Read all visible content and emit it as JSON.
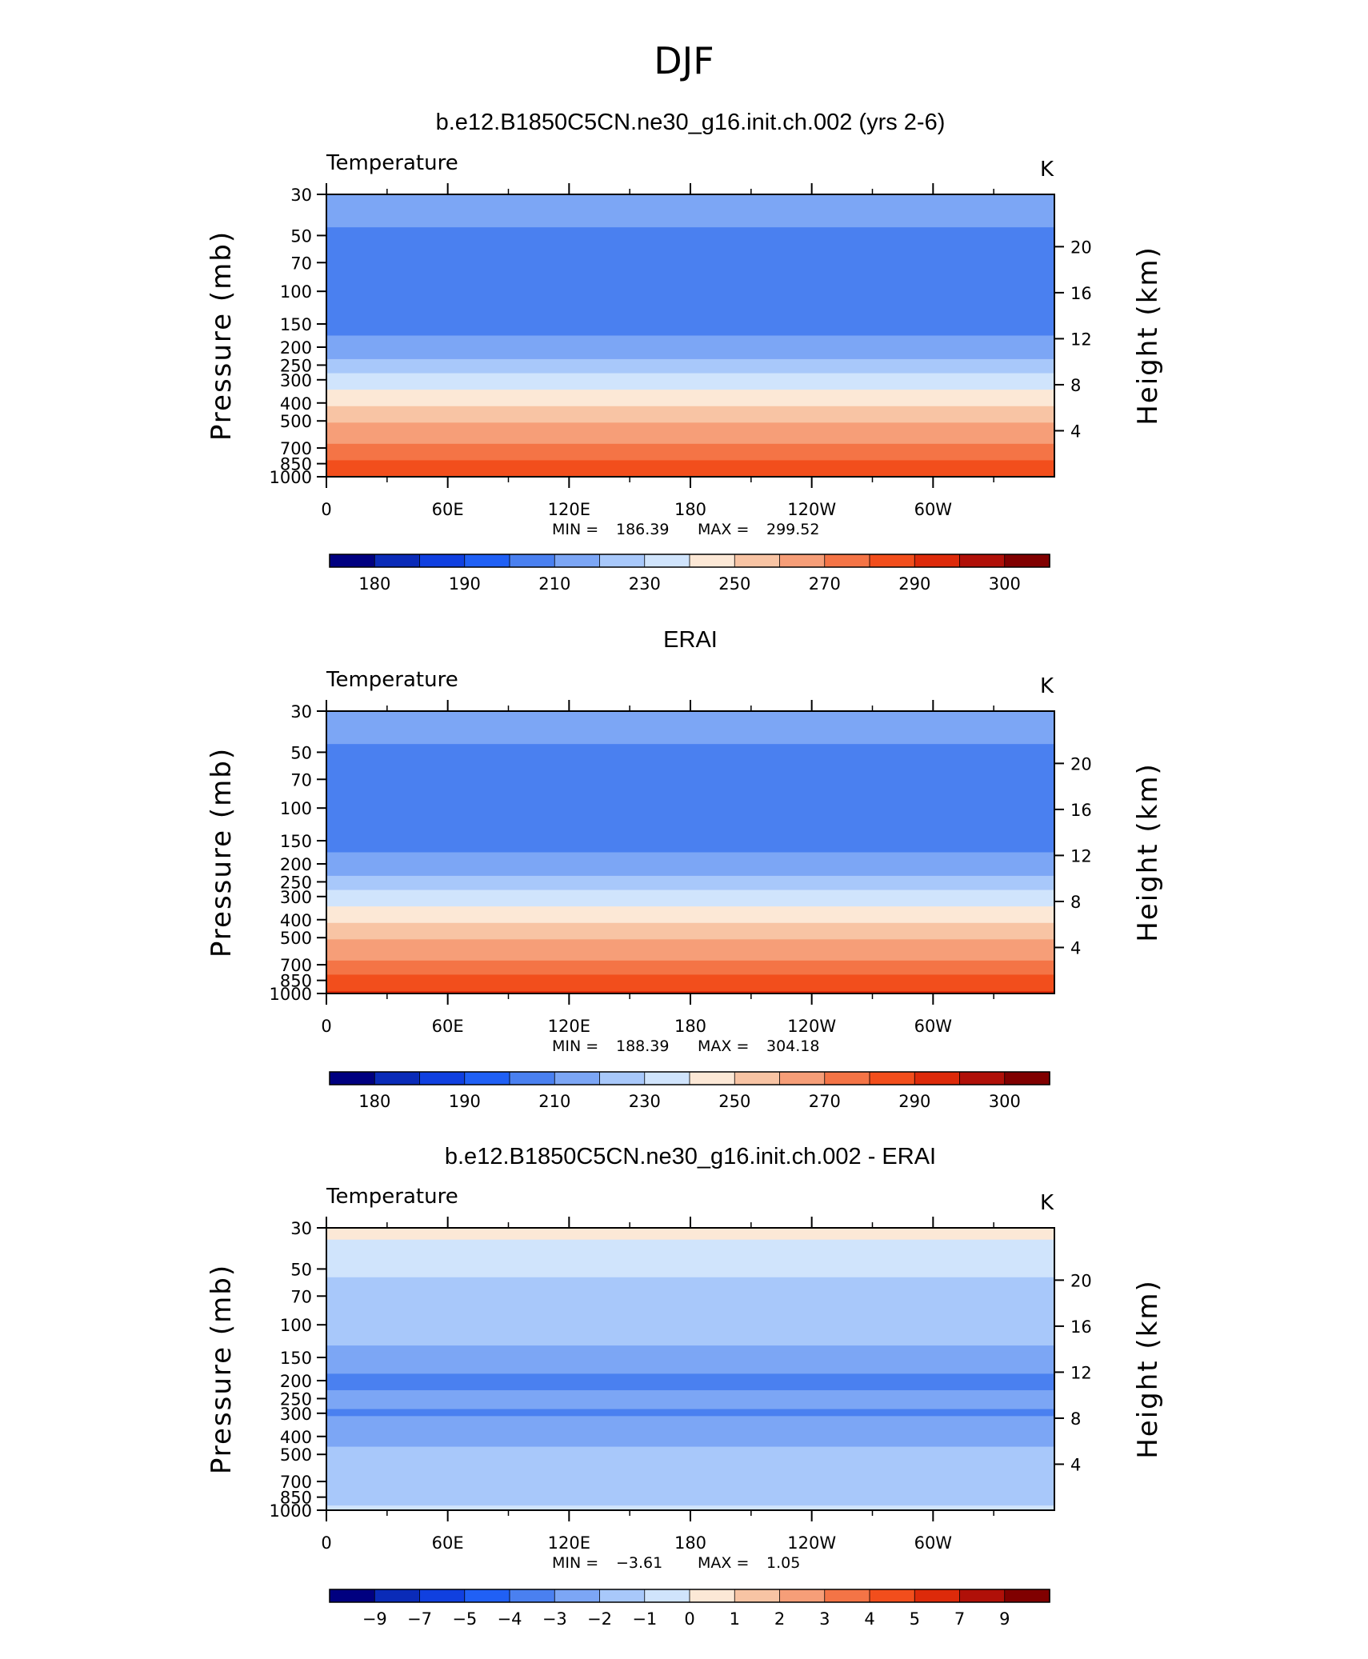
{
  "figure": {
    "title": "DJF"
  },
  "axes": {
    "ylabel_left": "Pressure (mb)",
    "ylabel_right": "Height (km)",
    "pressure_ticks": [
      "30",
      "50",
      "70",
      "100",
      "150",
      "200",
      "250",
      "300",
      "400",
      "500",
      "700",
      "850",
      "1000"
    ],
    "height_ticks": [
      "20",
      "16",
      "12",
      "8",
      "4"
    ],
    "lon_ticks": [
      "0",
      "60E",
      "120E",
      "180",
      "120W",
      "60W"
    ]
  },
  "panels": [
    {
      "title": "b.e12.B1850C5CN.ne30_g16.init.ch.002 (yrs 2-6)",
      "variable": "Temperature",
      "units": "K",
      "min_label": "MIN =",
      "min": "186.39",
      "max_label": "MAX =",
      "max": "299.52",
      "colorbar_labels": [
        "180",
        "190",
        "210",
        "230",
        "250",
        "270",
        "290",
        "300"
      ]
    },
    {
      "title": "ERAI",
      "variable": "Temperature",
      "units": "K",
      "min_label": "MIN =",
      "min": "188.39",
      "max_label": "MAX =",
      "max": "304.18",
      "colorbar_labels": [
        "180",
        "190",
        "210",
        "230",
        "250",
        "270",
        "290",
        "300"
      ]
    },
    {
      "title": "b.e12.B1850C5CN.ne30_g16.init.ch.002 - ERAI",
      "variable": "Temperature",
      "units": "K",
      "min_label": "MIN =",
      "min": "−3.61",
      "max_label": "MAX =",
      "max": "1.05",
      "colorbar_labels": [
        "−9",
        "−7",
        "−5",
        "−4",
        "−3",
        "−2",
        "−1",
        "0",
        "1",
        "2",
        "3",
        "4",
        "5",
        "7",
        "9"
      ]
    }
  ],
  "chart_data": [
    {
      "type": "heatmap",
      "title": "b.e12.B1850C5CN.ne30_g16.init.ch.002 (yrs 2-6)",
      "x": "longitude",
      "y": "pressure (mb), log scale",
      "xlim": [
        0,
        360
      ],
      "ylim": [
        1000,
        30
      ],
      "units": "K",
      "contour_levels": [
        180,
        185,
        190,
        200,
        210,
        220,
        230,
        240,
        250,
        260,
        270,
        280,
        290,
        295,
        300
      ],
      "palette": [
        "#000080",
        "#0a2bb8",
        "#1040e0",
        "#2060f5",
        "#4a80f0",
        "#7ca6f5",
        "#a8c8fa",
        "#d0e4fc",
        "#fce8d6",
        "#f8c4a4",
        "#f69e78",
        "#f47446",
        "#f24e1c",
        "#dd2a0a",
        "#b01008",
        "#800000"
      ],
      "zonal_profile": [
        {
          "p": 30,
          "value": 215
        },
        {
          "p": 40,
          "value": 212
        },
        {
          "p": 50,
          "value": 208
        },
        {
          "p": 70,
          "value": 203
        },
        {
          "p": 100,
          "value": 201
        },
        {
          "p": 150,
          "value": 206
        },
        {
          "p": 200,
          "value": 214
        },
        {
          "p": 250,
          "value": 224
        },
        {
          "p": 300,
          "value": 234
        },
        {
          "p": 400,
          "value": 248
        },
        {
          "p": 500,
          "value": 259
        },
        {
          "p": 600,
          "value": 266
        },
        {
          "p": 700,
          "value": 273
        },
        {
          "p": 850,
          "value": 282
        },
        {
          "p": 1000,
          "value": 290
        }
      ],
      "min": 186.39,
      "max": 299.52
    },
    {
      "type": "heatmap",
      "title": "ERAI",
      "x": "longitude",
      "y": "pressure (mb), log scale",
      "xlim": [
        0,
        360
      ],
      "ylim": [
        1000,
        30
      ],
      "units": "K",
      "contour_levels": [
        180,
        185,
        190,
        200,
        210,
        220,
        230,
        240,
        250,
        260,
        270,
        280,
        290,
        295,
        300
      ],
      "palette": [
        "#000080",
        "#0a2bb8",
        "#1040e0",
        "#2060f5",
        "#4a80f0",
        "#7ca6f5",
        "#a8c8fa",
        "#d0e4fc",
        "#fce8d6",
        "#f8c4a4",
        "#f69e78",
        "#f47446",
        "#f24e1c",
        "#dd2a0a",
        "#b01008",
        "#800000"
      ],
      "zonal_profile": [
        {
          "p": 30,
          "value": 215
        },
        {
          "p": 40,
          "value": 212
        },
        {
          "p": 50,
          "value": 208
        },
        {
          "p": 70,
          "value": 203
        },
        {
          "p": 100,
          "value": 201
        },
        {
          "p": 150,
          "value": 206
        },
        {
          "p": 200,
          "value": 214
        },
        {
          "p": 250,
          "value": 224
        },
        {
          "p": 300,
          "value": 234
        },
        {
          "p": 400,
          "value": 248
        },
        {
          "p": 500,
          "value": 259
        },
        {
          "p": 600,
          "value": 266
        },
        {
          "p": 700,
          "value": 273
        },
        {
          "p": 850,
          "value": 283
        },
        {
          "p": 1000,
          "value": 291
        }
      ],
      "min": 188.39,
      "max": 304.18
    },
    {
      "type": "heatmap",
      "title": "b.e12.B1850C5CN.ne30_g16.init.ch.002 - ERAI",
      "x": "longitude",
      "y": "pressure (mb), log scale",
      "xlim": [
        0,
        360
      ],
      "ylim": [
        1000,
        30
      ],
      "units": "K",
      "contour_levels": [
        -9,
        -7,
        -5,
        -4,
        -3,
        -2,
        -1,
        0,
        1,
        2,
        3,
        4,
        5,
        7,
        9
      ],
      "palette": [
        "#000080",
        "#0a2bb8",
        "#1040e0",
        "#2060f5",
        "#4a80f0",
        "#7ca6f5",
        "#a8c8fa",
        "#d0e4fc",
        "#fce8d6",
        "#f8c4a4",
        "#f69e78",
        "#f47446",
        "#f24e1c",
        "#dd2a0a",
        "#b01008",
        "#800000"
      ],
      "zonal_profile": [
        {
          "p": 30,
          "value": 0.5
        },
        {
          "p": 40,
          "value": -0.5
        },
        {
          "p": 50,
          "value": -0.8
        },
        {
          "p": 70,
          "value": -1.5
        },
        {
          "p": 100,
          "value": -1.2
        },
        {
          "p": 150,
          "value": -2.5
        },
        {
          "p": 200,
          "value": -3.2
        },
        {
          "p": 250,
          "value": -2.8
        },
        {
          "p": 300,
          "value": -3.1
        },
        {
          "p": 400,
          "value": -2.3
        },
        {
          "p": 500,
          "value": -1.8
        },
        {
          "p": 600,
          "value": -1.5
        },
        {
          "p": 700,
          "value": -1.9
        },
        {
          "p": 850,
          "value": -1.5
        },
        {
          "p": 1000,
          "value": -0.8
        }
      ],
      "min": -3.61,
      "max": 1.05
    }
  ]
}
